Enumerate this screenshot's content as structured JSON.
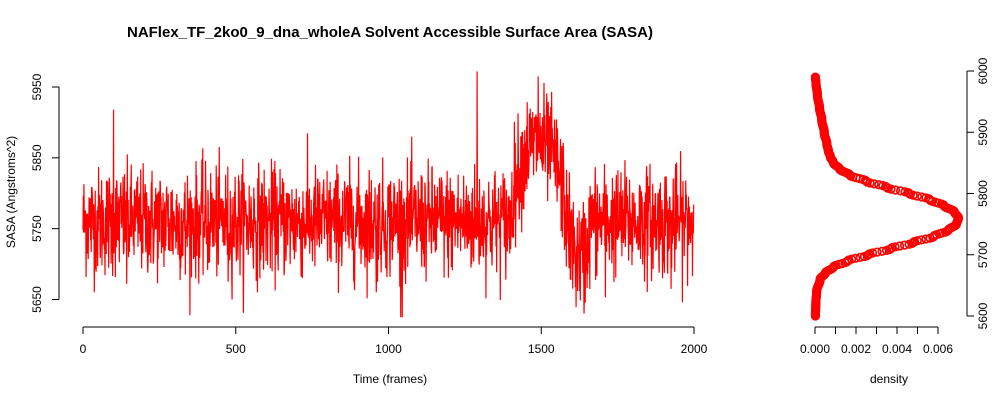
{
  "chart_data": [
    {
      "type": "line",
      "title": "NAFlex_TF_2ko0_9_dna_wholeA Solvent Accessible Surface Area (SASA)",
      "xlabel": "Time (frames)",
      "ylabel": "SASA (Angstroms^2)",
      "xlim": [
        0,
        2000
      ],
      "ylim": [
        5650,
        5975
      ],
      "x_ticks": [
        0,
        500,
        1000,
        1500,
        2000
      ],
      "y_ticks": [
        5650,
        5750,
        5850,
        5950
      ],
      "color": "#ff0000",
      "grid": false,
      "series": [
        {
          "n_frames": 2000,
          "baseline": 5760,
          "noise_sd": 38,
          "excursions": [
            {
              "x_start": 1400,
              "x_end": 1580,
              "mean": 5870
            },
            {
              "x_start": 1590,
              "x_end": 1660,
              "mean": 5710
            }
          ],
          "min": 5625,
          "max": 5975,
          "spikes": [
            {
              "x": 100,
              "y": 5918
            },
            {
              "x": 143,
              "y": 5672
            },
            {
              "x": 335,
              "y": 5685
            },
            {
              "x": 475,
              "y": 5675
            },
            {
              "x": 960,
              "y": 5660
            },
            {
              "x": 1040,
              "y": 5625
            },
            {
              "x": 1290,
              "y": 5972
            },
            {
              "x": 1490,
              "y": 5965
            },
            {
              "x": 1640,
              "y": 5630
            },
            {
              "x": 1710,
              "y": 5653
            },
            {
              "x": 1925,
              "y": 5665
            }
          ]
        }
      ]
    },
    {
      "type": "line",
      "xlabel": "density",
      "ylabel": "",
      "xlim": [
        0,
        0.007
      ],
      "ylim": [
        5600,
        6000
      ],
      "x_ticks": [
        "0.000",
        "0.002",
        "0.004",
        "0.006"
      ],
      "y_ticks": [
        5600,
        5700,
        5800,
        5900,
        6000
      ],
      "color": "#ff0000",
      "marker": "circle",
      "series": [
        {
          "y": [
            5600,
            5620,
            5640,
            5660,
            5670,
            5680,
            5690,
            5700,
            5710,
            5720,
            5730,
            5740,
            5750,
            5760,
            5770,
            5780,
            5790,
            5800,
            5810,
            5820,
            5830,
            5840,
            5850,
            5860,
            5870,
            5880,
            5900,
            5920,
            5940,
            5960,
            5980,
            5990
          ],
          "x": [
            2e-05,
            4e-05,
            8e-05,
            0.00025,
            0.0005,
            0.0009,
            0.0016,
            0.0026,
            0.0037,
            0.0048,
            0.0058,
            0.0065,
            0.0069,
            0.007,
            0.0068,
            0.0063,
            0.0056,
            0.0046,
            0.0035,
            0.0025,
            0.0017,
            0.0012,
            0.0009,
            0.00075,
            0.00065,
            0.00058,
            0.00045,
            0.00033,
            0.00022,
            0.00012,
            5e-05,
            2e-05
          ]
        }
      ]
    }
  ]
}
